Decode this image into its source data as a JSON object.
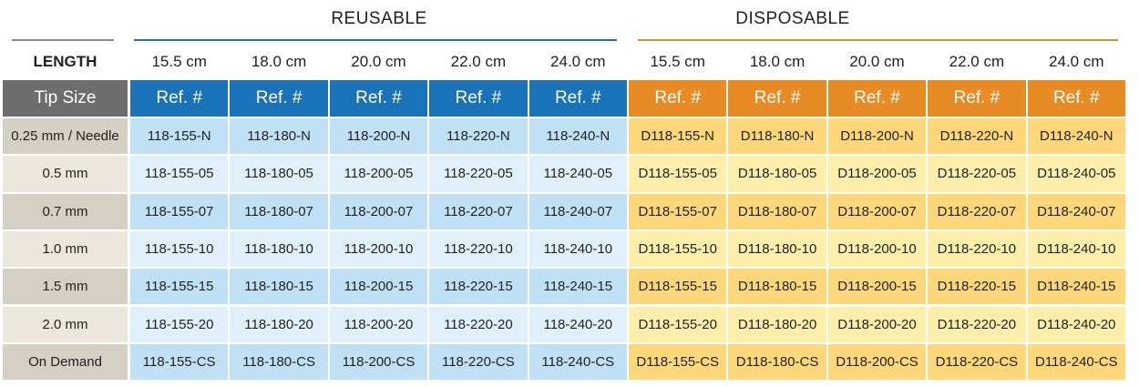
{
  "groups": {
    "reusable": "REUSABLE",
    "disposable": "DISPOSABLE"
  },
  "length_row": {
    "label": "LENGTH",
    "lengths": [
      "15.5 cm",
      "18.0 cm",
      "20.0 cm",
      "22.0 cm",
      "24.0 cm",
      "15.5 cm",
      "18.0 cm",
      "20.0 cm",
      "22.0 cm",
      "24.0 cm"
    ]
  },
  "header_row": {
    "label": "Tip Size",
    "cells": [
      "Ref. #",
      "Ref. #",
      "Ref. #",
      "Ref. #",
      "Ref. #",
      "Ref. #",
      "Ref. #",
      "Ref. #",
      "Ref. #",
      "Ref. #"
    ]
  },
  "rows": [
    {
      "tip": "0.25 mm / Needle",
      "refs": [
        "118-155-N",
        "118-180-N",
        "118-200-N",
        "118-220-N",
        "118-240-N",
        "D118-155-N",
        "D118-180-N",
        "D118-200-N",
        "D118-220-N",
        "D118-240-N"
      ]
    },
    {
      "tip": "0.5 mm",
      "refs": [
        "118-155-05",
        "118-180-05",
        "118-200-05",
        "118-220-05",
        "118-240-05",
        "D118-155-05",
        "D118-180-05",
        "D118-200-05",
        "D118-220-05",
        "D118-240-05"
      ]
    },
    {
      "tip": "0.7 mm",
      "refs": [
        "118-155-07",
        "118-180-07",
        "118-200-07",
        "118-220-07",
        "118-240-07",
        "D118-155-07",
        "D118-180-07",
        "D118-200-07",
        "D118-220-07",
        "D118-240-07"
      ]
    },
    {
      "tip": "1.0 mm",
      "refs": [
        "118-155-10",
        "118-180-10",
        "118-200-10",
        "118-220-10",
        "118-240-10",
        "D118-155-10",
        "D118-180-10",
        "D118-200-10",
        "D118-220-10",
        "D118-240-10"
      ]
    },
    {
      "tip": "1.5 mm",
      "refs": [
        "118-155-15",
        "118-180-15",
        "118-200-15",
        "118-220-15",
        "118-240-15",
        "D118-155-15",
        "D118-180-15",
        "D118-200-15",
        "D118-220-15",
        "D118-240-15"
      ]
    },
    {
      "tip": "2.0 mm",
      "refs": [
        "118-155-20",
        "118-180-20",
        "118-200-20",
        "118-220-20",
        "118-240-20",
        "D118-155-20",
        "D118-180-20",
        "D118-200-20",
        "D118-220-20",
        "D118-240-20"
      ]
    },
    {
      "tip": "On Demand",
      "refs": [
        "118-155-CS",
        "118-180-CS",
        "118-200-CS",
        "118-220-CS",
        "118-240-CS",
        "D118-155-CS",
        "D118-180-CS",
        "D118-200-CS",
        "D118-220-CS",
        "D118-240-CS"
      ]
    }
  ]
}
